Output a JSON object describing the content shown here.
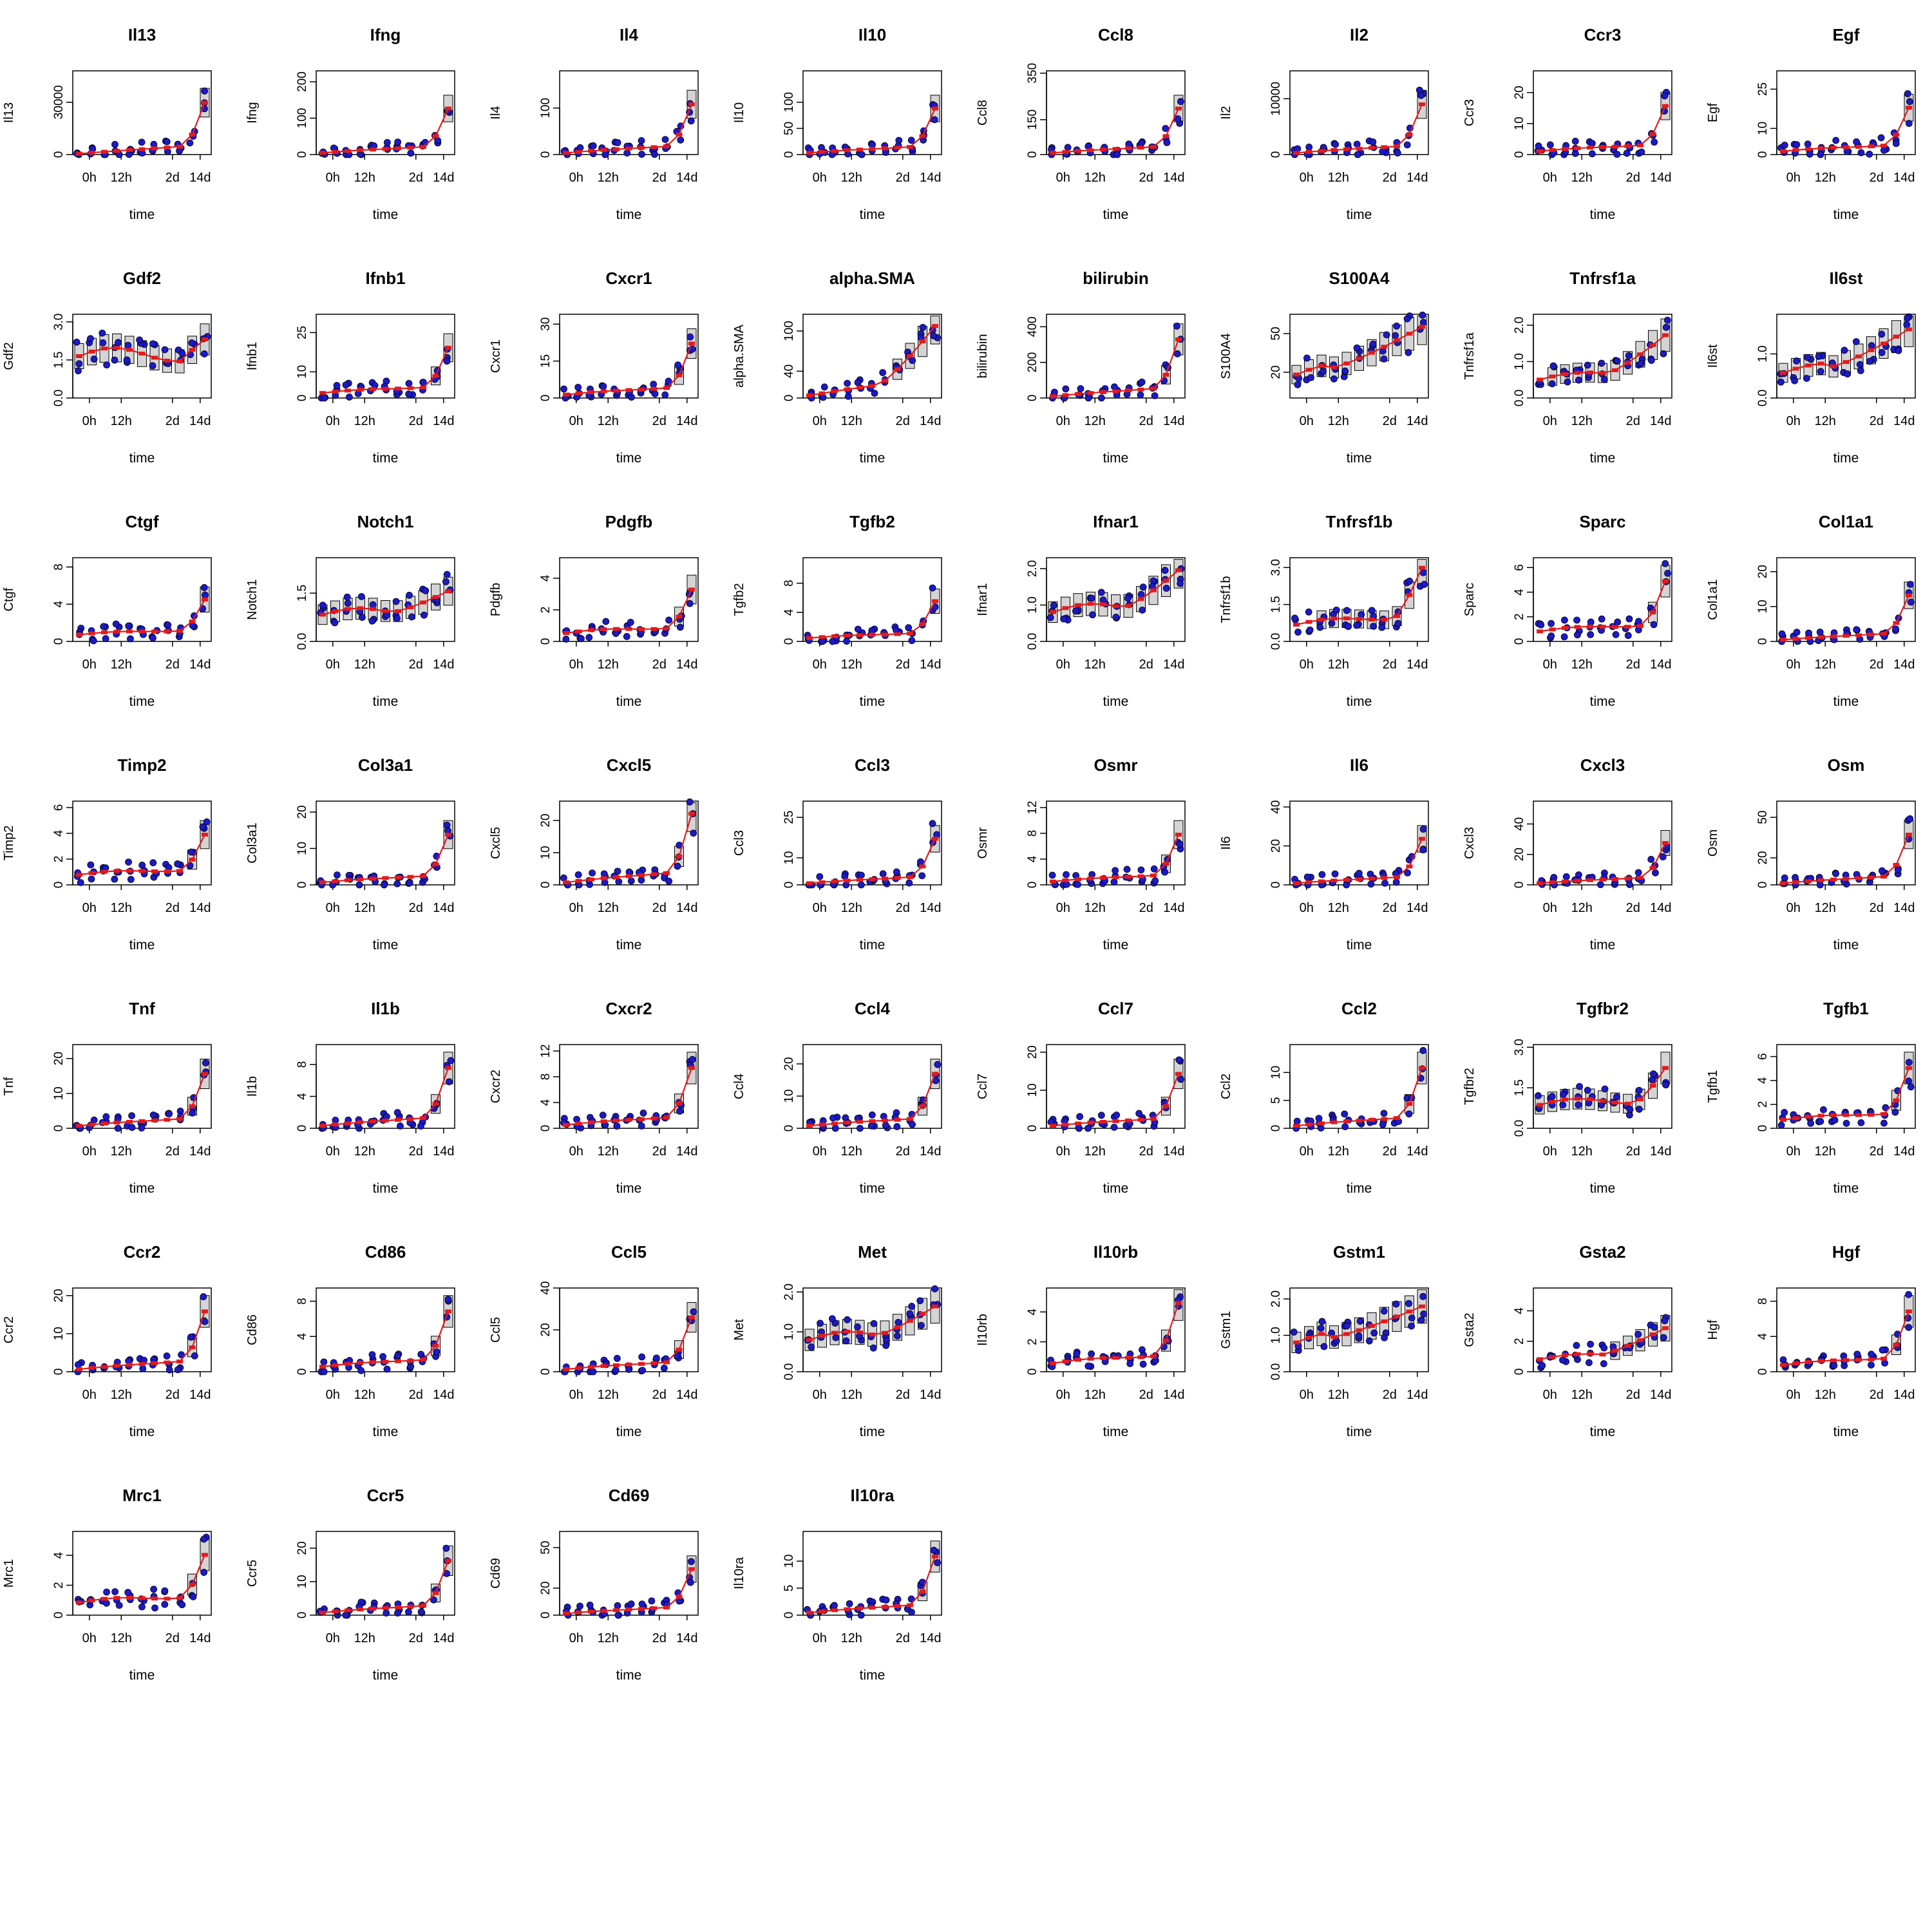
{
  "chart_data": {
    "type": "box_time_course",
    "x_categories": [
      "0h",
      "12h",
      "2d",
      "14d"
    ],
    "xlabel": "time",
    "colors": {
      "points": "#1a1acc",
      "median_line": "#e41a1c",
      "box_fill": "#d4d4d4",
      "axis": "#000000"
    },
    "panels": [
      {
        "title": "Il13",
        "ylabel": "Il13",
        "yticks": [
          "0",
          "30000"
        ],
        "ymax": 48000,
        "start": 0.01,
        "end": 0.62,
        "tail": 0.85
      },
      {
        "title": "Ifng",
        "ylabel": "Ifng",
        "yticks": [
          "0",
          "100",
          "200"
        ],
        "ymax": 230,
        "start": 0.02,
        "end": 0.55,
        "tail": 0.85
      },
      {
        "title": "Il4",
        "ylabel": "Il4",
        "yticks": [
          "0",
          "100"
        ],
        "ymax": 180,
        "start": 0.02,
        "end": 0.6,
        "tail": 0.85
      },
      {
        "title": "Il10",
        "ylabel": "Il10",
        "yticks": [
          "0",
          "50",
          "100"
        ],
        "ymax": 160,
        "start": 0.02,
        "end": 0.55,
        "tail": 0.85
      },
      {
        "title": "Ccl8",
        "ylabel": "Ccl8",
        "yticks": [
          "0",
          "150",
          "350"
        ],
        "ymax": 360,
        "start": 0.02,
        "end": 0.55,
        "tail": 0.85
      },
      {
        "title": "Il2",
        "ylabel": "Il2",
        "yticks": [
          "0",
          "10000"
        ],
        "ymax": 15000,
        "start": 0.02,
        "end": 0.6,
        "tail": 0.85
      },
      {
        "title": "Ccr3",
        "ylabel": "Ccr3",
        "yticks": [
          "0",
          "10",
          "20"
        ],
        "ymax": 27,
        "start": 0.04,
        "end": 0.58,
        "tail": 0.85
      },
      {
        "title": "Egf",
        "ylabel": "Egf",
        "yticks": [
          "0",
          "10",
          "25"
        ],
        "ymax": 32,
        "start": 0.04,
        "end": 0.56,
        "tail": 0.85
      },
      {
        "title": "Gdf2",
        "ylabel": "Gdf2",
        "yticks": [
          "0.0",
          "1.5",
          "3.0"
        ],
        "ymax": 3.3,
        "start": 0.5,
        "end": 0.7,
        "tail": 0.85
      },
      {
        "title": "Ifnb1",
        "ylabel": "Ifnb1",
        "yticks": [
          "0",
          "10",
          "25"
        ],
        "ymax": 32,
        "start": 0.06,
        "end": 0.6,
        "tail": 0.85
      },
      {
        "title": "Cxcr1",
        "ylabel": "Cxcr1",
        "yticks": [
          "0",
          "15",
          "30"
        ],
        "ymax": 34,
        "start": 0.04,
        "end": 0.65,
        "tail": 0.85
      },
      {
        "title": "alpha.SMA",
        "ylabel": "alpha.SMA",
        "yticks": [
          "0",
          "40",
          "100"
        ],
        "ymax": 125,
        "start": 0.03,
        "end": 0.86,
        "tail": 0.55
      },
      {
        "title": "bilirubin",
        "ylabel": "bilirubin",
        "yticks": [
          "0",
          "200",
          "400"
        ],
        "ymax": 470,
        "start": 0.02,
        "end": 0.7,
        "tail": 0.85
      },
      {
        "title": "S100A4",
        "ylabel": "S100A4",
        "yticks": [
          "20",
          "50"
        ],
        "ymax": 65,
        "start": 0.28,
        "end": 0.85,
        "tail": 0.3
      },
      {
        "title": "Tnfrsf1a",
        "ylabel": "Tnfrsf1a",
        "yticks": [
          "0.0",
          "1.0",
          "2.0"
        ],
        "ymax": 2.3,
        "start": 0.22,
        "end": 0.75,
        "tail": 0.55
      },
      {
        "title": "Il6st",
        "ylabel": "Il6st",
        "yticks": [
          "0.0",
          "1.0"
        ],
        "ymax": 1.9,
        "start": 0.3,
        "end": 0.82,
        "tail": 0.4
      },
      {
        "title": "Ctgf",
        "ylabel": "Ctgf",
        "yticks": [
          "0",
          "4",
          "8"
        ],
        "ymax": 9,
        "start": 0.08,
        "end": 0.5,
        "tail": 0.85
      },
      {
        "title": "Notch1",
        "ylabel": "Notch1",
        "yticks": [
          "0.0",
          "1.5"
        ],
        "ymax": 2.6,
        "start": 0.32,
        "end": 0.6,
        "tail": 0.6
      },
      {
        "title": "Pdgfb",
        "ylabel": "Pdgfb",
        "yticks": [
          "0",
          "2",
          "4"
        ],
        "ymax": 5.3,
        "start": 0.1,
        "end": 0.62,
        "tail": 0.85
      },
      {
        "title": "Tgfb2",
        "ylabel": "Tgfb2",
        "yticks": [
          "0",
          "4",
          "8"
        ],
        "ymax": 11.5,
        "start": 0.04,
        "end": 0.48,
        "tail": 0.85
      },
      {
        "title": "Ifnar1",
        "ylabel": "Ifnar1",
        "yticks": [
          "0.0",
          "1.0",
          "2.0"
        ],
        "ymax": 2.3,
        "start": 0.35,
        "end": 0.85,
        "tail": 0.6
      },
      {
        "title": "Tnfrsf1b",
        "ylabel": "Tnfrsf1b",
        "yticks": [
          "0.0",
          "1.5",
          "3.0"
        ],
        "ymax": 3.4,
        "start": 0.2,
        "end": 0.88,
        "tail": 0.8
      },
      {
        "title": "Sparc",
        "ylabel": "Sparc",
        "yticks": [
          "0",
          "2",
          "4",
          "6"
        ],
        "ymax": 6.8,
        "start": 0.12,
        "end": 0.72,
        "tail": 0.85
      },
      {
        "title": "Col1a1",
        "ylabel": "Col1a1",
        "yticks": [
          "0",
          "10",
          "20"
        ],
        "ymax": 24,
        "start": 0.02,
        "end": 0.55,
        "tail": 0.85
      },
      {
        "title": "Timp2",
        "ylabel": "Timp2",
        "yticks": [
          "0",
          "2",
          "4",
          "6"
        ],
        "ymax": 6.5,
        "start": 0.12,
        "end": 0.6,
        "tail": 0.85
      },
      {
        "title": "Col3a1",
        "ylabel": "Col3a1",
        "yticks": [
          "0",
          "10",
          "20"
        ],
        "ymax": 23,
        "start": 0.03,
        "end": 0.6,
        "tail": 0.85
      },
      {
        "title": "Cxcl5",
        "ylabel": "Cxcl5",
        "yticks": [
          "0",
          "10",
          "20"
        ],
        "ymax": 26,
        "start": 0.03,
        "end": 0.85,
        "tail": 0.85
      },
      {
        "title": "Ccl3",
        "ylabel": "Ccl3",
        "yticks": [
          "0",
          "10",
          "25"
        ],
        "ymax": 31,
        "start": 0.02,
        "end": 0.55,
        "tail": 0.85
      },
      {
        "title": "Osmr",
        "ylabel": "Osmr",
        "yticks": [
          "0",
          "4",
          "8",
          "12"
        ],
        "ymax": 13,
        "start": 0.04,
        "end": 0.6,
        "tail": 0.85
      },
      {
        "title": "Il6",
        "ylabel": "Il6",
        "yticks": [
          "0",
          "20",
          "40"
        ],
        "ymax": 43,
        "start": 0.02,
        "end": 0.55,
        "tail": 0.85
      },
      {
        "title": "Cxcl3",
        "ylabel": "Cxcl3",
        "yticks": [
          "0",
          "20",
          "40"
        ],
        "ymax": 55,
        "start": 0.02,
        "end": 0.5,
        "tail": 0.85
      },
      {
        "title": "Osm",
        "ylabel": "Osm",
        "yticks": [
          "0",
          "20",
          "50"
        ],
        "ymax": 62,
        "start": 0.02,
        "end": 0.6,
        "tail": 0.85
      },
      {
        "title": "Tnf",
        "ylabel": "Tnf",
        "yticks": [
          "0",
          "10",
          "20"
        ],
        "ymax": 24,
        "start": 0.03,
        "end": 0.65,
        "tail": 0.85
      },
      {
        "title": "Il1b",
        "ylabel": "Il1b",
        "yticks": [
          "0",
          "4",
          "8"
        ],
        "ymax": 10.5,
        "start": 0.03,
        "end": 0.72,
        "tail": 0.85
      },
      {
        "title": "Cxcr2",
        "ylabel": "Cxcr2",
        "yticks": [
          "0",
          "4",
          "8",
          "12"
        ],
        "ymax": 13,
        "start": 0.04,
        "end": 0.72,
        "tail": 0.85
      },
      {
        "title": "Ccl4",
        "ylabel": "Ccl4",
        "yticks": [
          "0",
          "10",
          "20"
        ],
        "ymax": 26,
        "start": 0.03,
        "end": 0.65,
        "tail": 0.85
      },
      {
        "title": "Ccl7",
        "ylabel": "Ccl7",
        "yticks": [
          "0",
          "10",
          "20"
        ],
        "ymax": 22,
        "start": 0.03,
        "end": 0.65,
        "tail": 0.85
      },
      {
        "title": "Ccl2",
        "ylabel": "Ccl2",
        "yticks": [
          "0",
          "5",
          "10"
        ],
        "ymax": 15,
        "start": 0.03,
        "end": 0.72,
        "tail": 0.85
      },
      {
        "title": "Tgfbr2",
        "ylabel": "Tgfbr2",
        "yticks": [
          "0.0",
          "1.5",
          "3.0"
        ],
        "ymax": 3.1,
        "start": 0.28,
        "end": 0.72,
        "tail": 0.8
      },
      {
        "title": "Tgfb1",
        "ylabel": "Tgfb1",
        "yticks": [
          "0",
          "2",
          "4",
          "6"
        ],
        "ymax": 7,
        "start": 0.1,
        "end": 0.72,
        "tail": 0.85
      },
      {
        "title": "Ccr2",
        "ylabel": "Ccr2",
        "yticks": [
          "0",
          "10",
          "20"
        ],
        "ymax": 22,
        "start": 0.03,
        "end": 0.72,
        "tail": 0.85
      },
      {
        "title": "Cd86",
        "ylabel": "Cd86",
        "yticks": [
          "0",
          "4",
          "8"
        ],
        "ymax": 9.5,
        "start": 0.06,
        "end": 0.72,
        "tail": 0.85
      },
      {
        "title": "Ccl5",
        "ylabel": "Ccl5",
        "yticks": [
          "0",
          "20",
          "40"
        ],
        "ymax": 40,
        "start": 0.03,
        "end": 0.65,
        "tail": 0.85
      },
      {
        "title": "Met",
        "ylabel": "Met",
        "yticks": [
          "0.0",
          "1.0",
          "2.0"
        ],
        "ymax": 2.1,
        "start": 0.38,
        "end": 0.78,
        "tail": 0.55
      },
      {
        "title": "Il10rb",
        "ylabel": "Il10rb",
        "yticks": [
          "0",
          "2",
          "4"
        ],
        "ymax": 5.6,
        "start": 0.1,
        "end": 0.82,
        "tail": 0.85
      },
      {
        "title": "Gstm1",
        "ylabel": "Gstm1",
        "yticks": [
          "0.0",
          "1.0",
          "2.0"
        ],
        "ymax": 2.3,
        "start": 0.35,
        "end": 0.78,
        "tail": 0.3
      },
      {
        "title": "Gsta2",
        "ylabel": "Gsta2",
        "yticks": [
          "0",
          "2",
          "4"
        ],
        "ymax": 5.5,
        "start": 0.15,
        "end": 0.52,
        "tail": 0.5
      },
      {
        "title": "Hgf",
        "ylabel": "Hgf",
        "yticks": [
          "0",
          "4",
          "8"
        ],
        "ymax": 9.5,
        "start": 0.08,
        "end": 0.72,
        "tail": 0.85
      },
      {
        "title": "Mrc1",
        "ylabel": "Mrc1",
        "yticks": [
          "0",
          "2",
          "4"
        ],
        "ymax": 5.6,
        "start": 0.15,
        "end": 0.72,
        "tail": 0.85
      },
      {
        "title": "Ccr5",
        "ylabel": "Ccr5",
        "yticks": [
          "0",
          "10",
          "20"
        ],
        "ymax": 25,
        "start": 0.03,
        "end": 0.65,
        "tail": 0.85
      },
      {
        "title": "Cd69",
        "ylabel": "Cd69",
        "yticks": [
          "0",
          "20",
          "50"
        ],
        "ymax": 62,
        "start": 0.02,
        "end": 0.55,
        "tail": 0.85
      },
      {
        "title": "Il10ra",
        "ylabel": "Il10ra",
        "yticks": [
          "0",
          "5",
          "10"
        ],
        "ymax": 15.5,
        "start": 0.03,
        "end": 0.7,
        "tail": 0.85
      }
    ]
  }
}
